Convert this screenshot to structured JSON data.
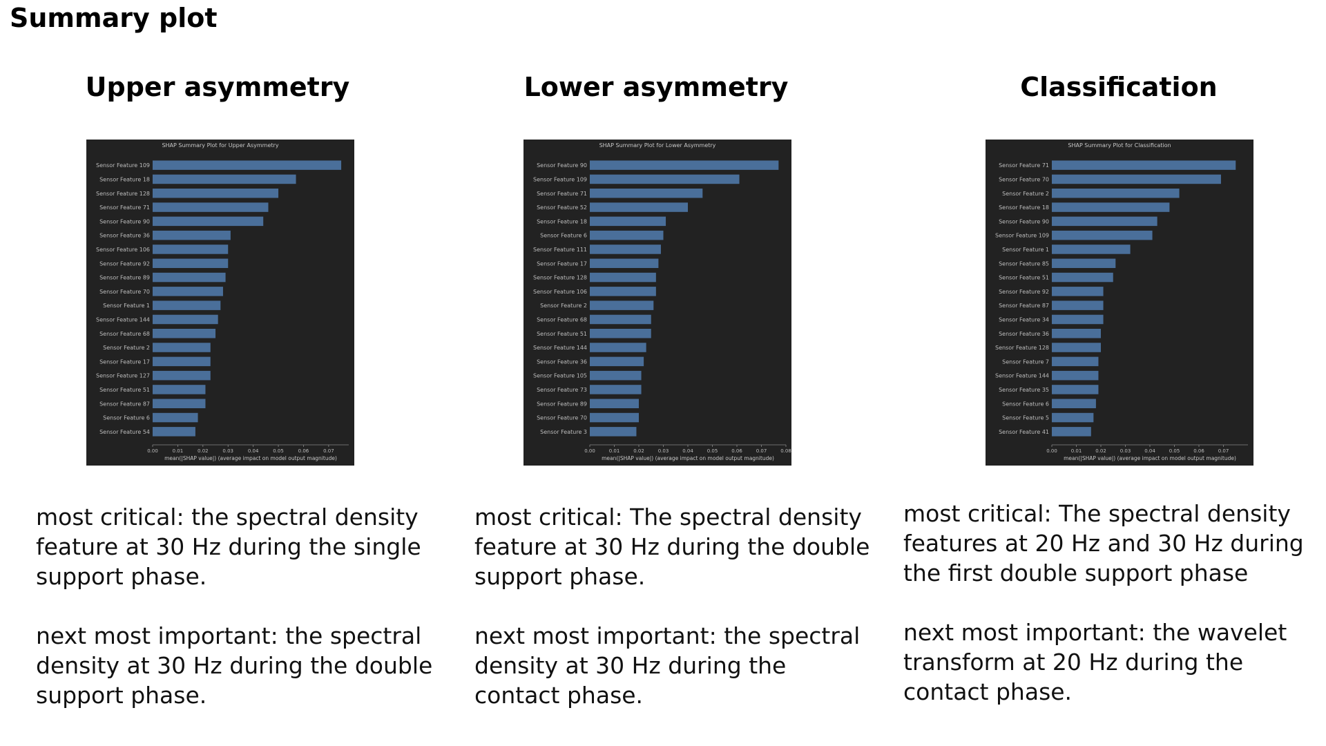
{
  "page": {
    "title": "Summary plot"
  },
  "columns": [
    {
      "heading": "Upper asymmetry",
      "critical": "most critical: the spectral density feature at 30 Hz during the single support phase.",
      "next": "next most important: the spectral density at 30 Hz during the double support phase."
    },
    {
      "heading": "Lower asymmetry",
      "critical": "most critical: The spectral density feature at 30 Hz during the double support phase.",
      "next": "next most important: the spectral density at 30 Hz during the contact phase."
    },
    {
      "heading": "Classification",
      "critical": "most critical: The spectral density features at 20 Hz and 30 Hz during the first double support phase",
      "next": "next most important: the wavelet transform at 20 Hz during the contact phase."
    }
  ],
  "chart_data": [
    {
      "type": "bar",
      "orientation": "horizontal",
      "title": "SHAP Summary Plot for Upper Asymmetry",
      "xlabel": "mean(|SHAP value|) (average impact on model output magnitude)",
      "xlim": [
        0,
        0.078
      ],
      "xticks": [
        "0.00",
        "0.01",
        "0.02",
        "0.03",
        "0.04",
        "0.05",
        "0.06",
        "0.07"
      ],
      "bar_color": "#4a6f9a",
      "background": "#222222",
      "categories": [
        "Sensor Feature 109",
        "Sensor Feature 18",
        "Sensor Feature 128",
        "Sensor Feature 71",
        "Sensor Feature 90",
        "Sensor Feature 36",
        "Sensor Feature 106",
        "Sensor Feature 92",
        "Sensor Feature 89",
        "Sensor Feature 70",
        "Sensor Feature 1",
        "Sensor Feature 144",
        "Sensor Feature 68",
        "Sensor Feature 2",
        "Sensor Feature 17",
        "Sensor Feature 127",
        "Sensor Feature 51",
        "Sensor Feature 87",
        "Sensor Feature 6",
        "Sensor Feature 54"
      ],
      "values": [
        0.075,
        0.057,
        0.05,
        0.046,
        0.044,
        0.031,
        0.03,
        0.03,
        0.029,
        0.028,
        0.027,
        0.026,
        0.025,
        0.023,
        0.023,
        0.023,
        0.021,
        0.021,
        0.018,
        0.017
      ]
    },
    {
      "type": "bar",
      "orientation": "horizontal",
      "title": "SHAP Summary Plot for Lower Asymmetry",
      "xlabel": "mean(|SHAP value|) (average impact on model output magnitude)",
      "xlim": [
        0,
        0.08
      ],
      "xticks": [
        "0.00",
        "0.01",
        "0.02",
        "0.03",
        "0.04",
        "0.05",
        "0.06",
        "0.07",
        "0.08"
      ],
      "bar_color": "#4a6f9a",
      "background": "#222222",
      "categories": [
        "Sensor Feature 90",
        "Sensor Feature 109",
        "Sensor Feature 71",
        "Sensor Feature 52",
        "Sensor Feature 18",
        "Sensor Feature 6",
        "Sensor Feature 111",
        "Sensor Feature 17",
        "Sensor Feature 128",
        "Sensor Feature 106",
        "Sensor Feature 2",
        "Sensor Feature 68",
        "Sensor Feature 51",
        "Sensor Feature 144",
        "Sensor Feature 36",
        "Sensor Feature 105",
        "Sensor Feature 73",
        "Sensor Feature 89",
        "Sensor Feature 70",
        "Sensor Feature 3"
      ],
      "values": [
        0.077,
        0.061,
        0.046,
        0.04,
        0.031,
        0.03,
        0.029,
        0.028,
        0.027,
        0.027,
        0.026,
        0.025,
        0.025,
        0.023,
        0.022,
        0.021,
        0.021,
        0.02,
        0.02,
        0.019
      ]
    },
    {
      "type": "bar",
      "orientation": "horizontal",
      "title": "SHAP Summary Plot for Classification",
      "xlabel": "mean(|SHAP value|) (average impact on model output magnitude)",
      "xlim": [
        0,
        0.08
      ],
      "xticks": [
        "0.00",
        "0.01",
        "0.02",
        "0.03",
        "0.04",
        "0.05",
        "0.06",
        "0.07"
      ],
      "bar_color": "#4a6f9a",
      "background": "#222222",
      "categories": [
        "Sensor Feature 71",
        "Sensor Feature 70",
        "Sensor Feature 2",
        "Sensor Feature 18",
        "Sensor Feature 90",
        "Sensor Feature 109",
        "Sensor Feature 1",
        "Sensor Feature 85",
        "Sensor Feature 51",
        "Sensor Feature 92",
        "Sensor Feature 87",
        "Sensor Feature 34",
        "Sensor Feature 36",
        "Sensor Feature 128",
        "Sensor Feature 7",
        "Sensor Feature 144",
        "Sensor Feature 35",
        "Sensor Feature 6",
        "Sensor Feature 5",
        "Sensor Feature 41"
      ],
      "values": [
        0.075,
        0.069,
        0.052,
        0.048,
        0.043,
        0.041,
        0.032,
        0.026,
        0.025,
        0.021,
        0.021,
        0.021,
        0.02,
        0.02,
        0.019,
        0.019,
        0.019,
        0.018,
        0.017,
        0.016
      ]
    }
  ]
}
